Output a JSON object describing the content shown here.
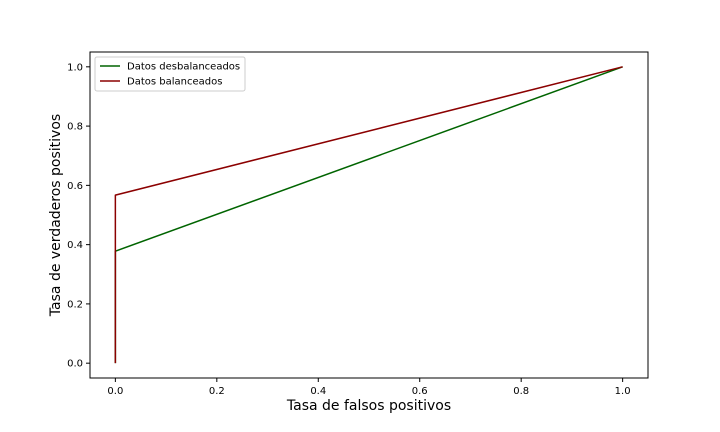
{
  "chart_data": {
    "type": "line",
    "title": "",
    "xlabel": "Tasa de falsos positivos",
    "ylabel": "Tasa de verdaderos positivos",
    "xlim": [
      -0.05,
      1.05
    ],
    "ylim": [
      -0.05,
      1.05
    ],
    "xticks": [
      0.0,
      0.2,
      0.4,
      0.6,
      0.8,
      1.0
    ],
    "yticks": [
      0.0,
      0.2,
      0.4,
      0.6,
      0.8,
      1.0
    ],
    "xtick_labels": [
      "0.0",
      "0.2",
      "0.4",
      "0.6",
      "0.8",
      "1.0"
    ],
    "ytick_labels": [
      "0.0",
      "0.2",
      "0.4",
      "0.6",
      "0.8",
      "1.0"
    ],
    "grid": false,
    "legend_position": "top-left",
    "series": [
      {
        "name": "Datos desbalanceados",
        "color": "#006400",
        "x": [
          0.0,
          0.0,
          1.0
        ],
        "y": [
          0.0,
          0.378,
          1.0
        ]
      },
      {
        "name": "Datos balanceados",
        "color": "#8b0000",
        "x": [
          0.0,
          0.0,
          1.0
        ],
        "y": [
          0.0,
          0.567,
          1.0
        ]
      }
    ]
  }
}
